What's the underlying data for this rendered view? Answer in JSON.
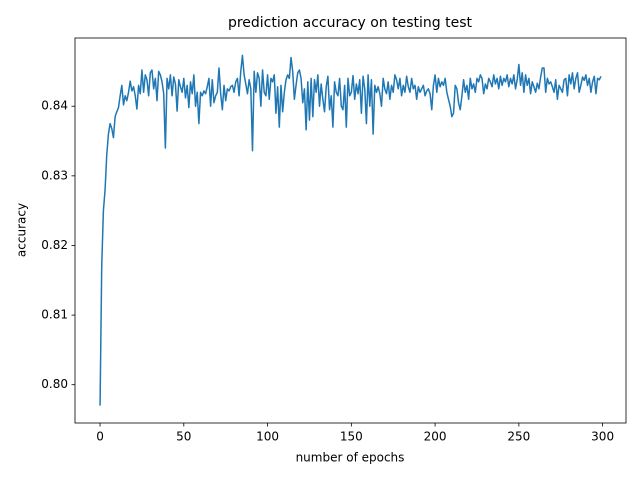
{
  "chart_data": {
    "type": "line",
    "title": "prediction accuracy on testing test",
    "xlabel": "number of epochs",
    "ylabel": "accuracy",
    "xlim": [
      -14.95,
      313.95
    ],
    "ylim": [
      0.7945,
      0.8498
    ],
    "xticks": [
      0,
      50,
      100,
      150,
      200,
      250,
      300
    ],
    "yticks": [
      {
        "value": 0.8,
        "label": "0.80"
      },
      0.81,
      0.82,
      0.83,
      0.84
    ],
    "grid": false,
    "series": [
      {
        "color": "#1f77b4",
        "x": [
          0,
          1,
          2,
          3,
          4,
          5,
          6,
          7,
          8,
          9,
          10,
          11,
          12,
          13,
          14,
          15,
          16,
          17,
          18,
          19,
          20,
          21,
          22,
          23,
          24,
          25,
          26,
          27,
          28,
          29,
          30,
          31,
          32,
          33,
          34,
          35,
          36,
          37,
          38,
          39,
          40,
          41,
          42,
          43,
          44,
          45,
          46,
          47,
          48,
          49,
          50,
          51,
          52,
          53,
          54,
          55,
          56,
          57,
          58,
          59,
          60,
          61,
          62,
          63,
          64,
          65,
          66,
          67,
          68,
          69,
          70,
          71,
          72,
          73,
          74,
          75,
          76,
          77,
          78,
          79,
          80,
          81,
          82,
          83,
          84,
          85,
          86,
          87,
          88,
          89,
          90,
          91,
          92,
          93,
          94,
          95,
          96,
          97,
          98,
          99,
          100,
          101,
          102,
          103,
          104,
          105,
          106,
          107,
          108,
          109,
          110,
          111,
          112,
          113,
          114,
          115,
          116,
          117,
          118,
          119,
          120,
          121,
          122,
          123,
          124,
          125,
          126,
          127,
          128,
          129,
          130,
          131,
          132,
          133,
          134,
          135,
          136,
          137,
          138,
          139,
          140,
          141,
          142,
          143,
          144,
          145,
          146,
          147,
          148,
          149,
          150,
          151,
          152,
          153,
          154,
          155,
          156,
          157,
          158,
          159,
          160,
          161,
          162,
          163,
          164,
          165,
          166,
          167,
          168,
          169,
          170,
          171,
          172,
          173,
          174,
          175,
          176,
          177,
          178,
          179,
          180,
          181,
          182,
          183,
          184,
          185,
          186,
          187,
          188,
          189,
          190,
          191,
          192,
          193,
          194,
          195,
          196,
          197,
          198,
          199,
          200,
          201,
          202,
          203,
          204,
          205,
          206,
          207,
          208,
          209,
          210,
          211,
          212,
          213,
          214,
          215,
          216,
          217,
          218,
          219,
          220,
          221,
          222,
          223,
          224,
          225,
          226,
          227,
          228,
          229,
          230,
          231,
          232,
          233,
          234,
          235,
          236,
          237,
          238,
          239,
          240,
          241,
          242,
          243,
          244,
          245,
          246,
          247,
          248,
          249,
          250,
          251,
          252,
          253,
          254,
          255,
          256,
          257,
          258,
          259,
          260,
          261,
          262,
          263,
          264,
          265,
          266,
          267,
          268,
          269,
          270,
          271,
          272,
          273,
          274,
          275,
          276,
          277,
          278,
          279,
          280,
          281,
          282,
          283,
          284,
          285,
          286,
          287,
          288,
          289,
          290,
          291,
          292,
          293,
          294,
          295,
          296,
          297,
          298,
          299
        ],
        "values": [
          0.797,
          0.817,
          0.825,
          0.828,
          0.833,
          0.836,
          0.8375,
          0.8368,
          0.8355,
          0.8385,
          0.8392,
          0.8398,
          0.8415,
          0.843,
          0.8402,
          0.8415,
          0.8408,
          0.842,
          0.8436,
          0.8422,
          0.8428,
          0.8415,
          0.8396,
          0.843,
          0.8418,
          0.8452,
          0.842,
          0.8445,
          0.8438,
          0.8415,
          0.8448,
          0.8452,
          0.8425,
          0.844,
          0.8408,
          0.845,
          0.8445,
          0.8435,
          0.8418,
          0.834,
          0.844,
          0.8425,
          0.8445,
          0.8415,
          0.8442,
          0.8432,
          0.8393,
          0.8438,
          0.8428,
          0.842,
          0.844,
          0.8412,
          0.843,
          0.8398,
          0.8435,
          0.8418,
          0.8445,
          0.84,
          0.842,
          0.8375,
          0.842,
          0.8415,
          0.8422,
          0.8418,
          0.8428,
          0.844,
          0.84,
          0.8438,
          0.8405,
          0.8415,
          0.842,
          0.8455,
          0.8418,
          0.8395,
          0.843,
          0.8408,
          0.8425,
          0.8422,
          0.8428,
          0.843,
          0.842,
          0.8435,
          0.844,
          0.8415,
          0.845,
          0.8473,
          0.8445,
          0.8432,
          0.8418,
          0.8438,
          0.8425,
          0.8336,
          0.845,
          0.842,
          0.8448,
          0.844,
          0.84,
          0.8452,
          0.842,
          0.8415,
          0.8445,
          0.841,
          0.844,
          0.8435,
          0.8445,
          0.839,
          0.8428,
          0.837,
          0.843,
          0.8392,
          0.842,
          0.8438,
          0.8445,
          0.844,
          0.847,
          0.845,
          0.841,
          0.843,
          0.8448,
          0.8452,
          0.844,
          0.8405,
          0.8425,
          0.8366,
          0.8435,
          0.838,
          0.844,
          0.8385,
          0.8438,
          0.842,
          0.8445,
          0.84,
          0.8432,
          0.841,
          0.8392,
          0.8428,
          0.8443,
          0.8395,
          0.8415,
          0.837,
          0.8435,
          0.842,
          0.8415,
          0.844,
          0.84,
          0.8395,
          0.843,
          0.837,
          0.844,
          0.8415,
          0.842,
          0.8444,
          0.841,
          0.8432,
          0.8418,
          0.8438,
          0.839,
          0.8443,
          0.8425,
          0.8375,
          0.8445,
          0.84,
          0.8438,
          0.836,
          0.843,
          0.842,
          0.8428,
          0.8418,
          0.84,
          0.844,
          0.8425,
          0.8418,
          0.8435,
          0.841,
          0.843,
          0.842,
          0.8445,
          0.8438,
          0.8425,
          0.844,
          0.8415,
          0.843,
          0.842,
          0.8443,
          0.8428,
          0.842,
          0.844,
          0.8425,
          0.843,
          0.841,
          0.8428,
          0.842,
          0.8425,
          0.843,
          0.8415,
          0.8422,
          0.8425,
          0.8418,
          0.8395,
          0.843,
          0.8445,
          0.842,
          0.844,
          0.8428,
          0.8435,
          0.843,
          0.844,
          0.842,
          0.841,
          0.84,
          0.8385,
          0.839,
          0.843,
          0.8425,
          0.8405,
          0.8395,
          0.8415,
          0.8438,
          0.842,
          0.843,
          0.841,
          0.844,
          0.8425,
          0.8432,
          0.842,
          0.844,
          0.8435,
          0.8445,
          0.844,
          0.8418,
          0.8432,
          0.8425,
          0.844,
          0.8435,
          0.8428,
          0.8445,
          0.8432,
          0.844,
          0.8425,
          0.8443,
          0.843,
          0.844,
          0.8435,
          0.8445,
          0.8428,
          0.844,
          0.8432,
          0.8445,
          0.8425,
          0.8438,
          0.846,
          0.843,
          0.8448,
          0.842,
          0.8445,
          0.843,
          0.844,
          0.8418,
          0.8435,
          0.8428,
          0.842,
          0.8433,
          0.8425,
          0.8442,
          0.8455,
          0.8455,
          0.842,
          0.844,
          0.8432,
          0.8435,
          0.8428,
          0.842,
          0.8438,
          0.841,
          0.843,
          0.8425,
          0.842,
          0.8438,
          0.844,
          0.8415,
          0.8445,
          0.8432,
          0.8448,
          0.8425,
          0.844,
          0.8448,
          0.842,
          0.843,
          0.8442,
          0.8437,
          0.8445,
          0.843,
          0.844,
          0.842,
          0.8435,
          0.8443,
          0.8418,
          0.844,
          0.8438,
          0.8443
        ]
      }
    ]
  }
}
